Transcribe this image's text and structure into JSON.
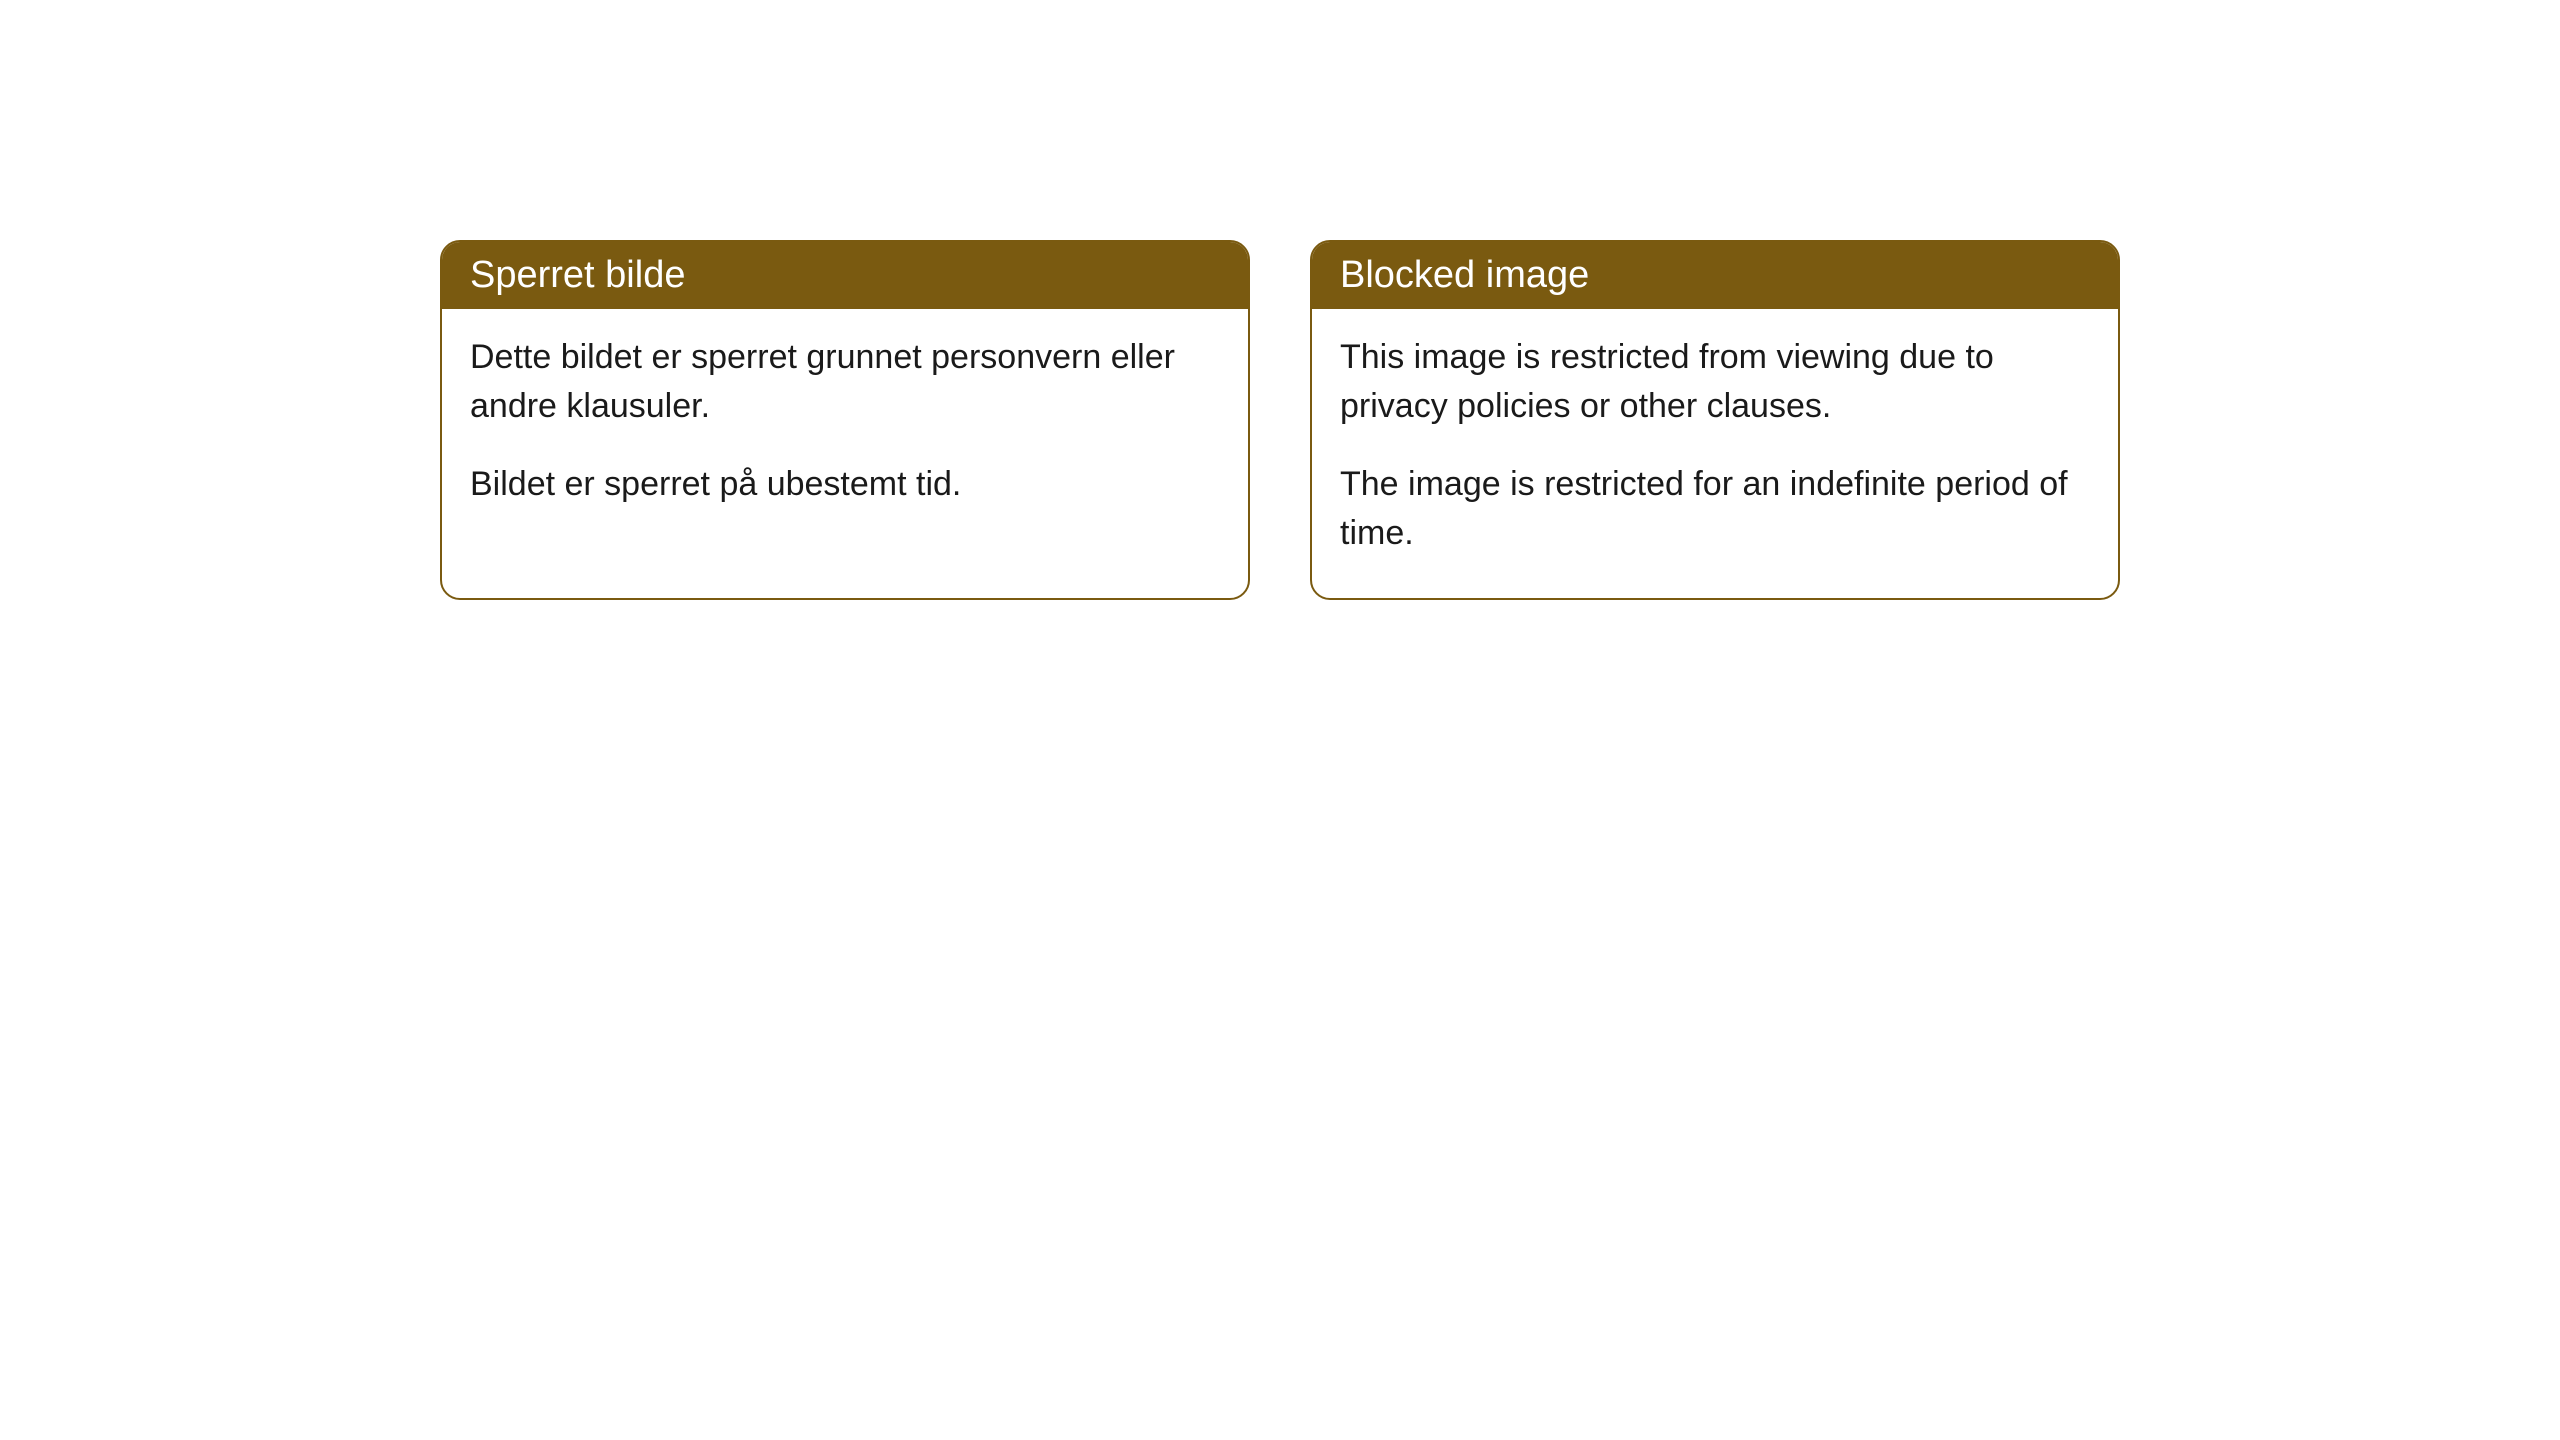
{
  "cards": [
    {
      "title": "Sperret bilde",
      "paragraph1": "Dette bildet er sperret grunnet personvern eller andre klausuler.",
      "paragraph2": "Bildet er sperret på ubestemt tid."
    },
    {
      "title": "Blocked image",
      "paragraph1": "This image is restricted from viewing due to privacy policies or other clauses.",
      "paragraph2": "The image is restricted for an indefinite period of time."
    }
  ],
  "styling": {
    "header_bg_color": "#7a5a10",
    "header_text_color": "#ffffff",
    "border_color": "#7a5a10",
    "body_text_color": "#1a1a1a",
    "background_color": "#ffffff",
    "border_radius": 20,
    "header_fontsize": 38,
    "body_fontsize": 34
  }
}
